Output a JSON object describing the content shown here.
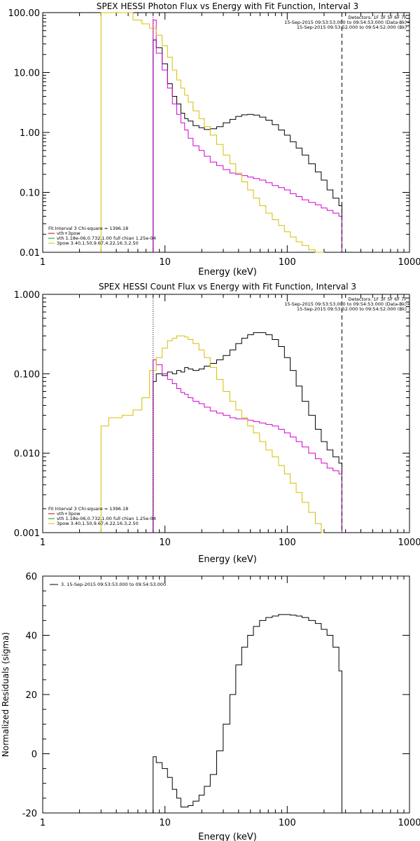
{
  "chart_data": [
    {
      "type": "line",
      "title": "SPEX HESSI Photon Flux vs Energy with Fit Function, Interval 3",
      "xlabel": "Energy (keV)",
      "ylabel": "",
      "xscale": "log",
      "yscale": "log",
      "xlim": [
        1,
        1000
      ],
      "ylim": [
        0.01,
        100
      ],
      "xticks": [
        "1",
        "10",
        "100",
        "1000"
      ],
      "yticks": [
        "0.01",
        "0.10",
        "1.00",
        "10.00",
        "100.00"
      ],
      "top_right_text": [
        "Detectors: 1F 3F 5F 6F 7F",
        "15-Sep-2015 09:53:53.000 to 09:54:53.000 (Data-Bk)",
        "15-Sep-2015 09:53:52.000 to 09:54:52.000 (Bk)"
      ],
      "legend": {
        "header": "Fit Interval 3    Chi-square = 1396.18",
        "entries": [
          {
            "label": "vth+3pow",
            "color": "#cc0000"
          },
          {
            "label": "vth 1.18e-06,0.732,1.00  full chian 1.25e-04",
            "color": "#00aa00"
          },
          {
            "label": "3pow 3.40,1.50,9.67,4.22,16.3,2.50",
            "color": "#d4c000"
          }
        ]
      },
      "vlines": [
        {
          "x": 8.0,
          "style": "dotted",
          "color": "#8800aa"
        },
        {
          "x": 280,
          "style": "dashed",
          "color": "#000000"
        }
      ],
      "series": [
        {
          "color": "#000000",
          "x": [
            8,
            9,
            10,
            11,
            12,
            13,
            14,
            15,
            16,
            18,
            20,
            22,
            25,
            28,
            32,
            36,
            40,
            45,
            50,
            56,
            63,
            71,
            80,
            90,
            100,
            112,
            125,
            140,
            160,
            180,
            200,
            224,
            250,
            280
          ],
          "y": [
            35,
            26,
            14,
            6.5,
            4.0,
            3.0,
            2.1,
            1.7,
            1.55,
            1.3,
            1.2,
            1.12,
            1.15,
            1.25,
            1.45,
            1.65,
            1.85,
            1.97,
            2.0,
            1.95,
            1.8,
            1.6,
            1.35,
            1.1,
            0.9,
            0.7,
            0.55,
            0.42,
            0.3,
            0.22,
            0.16,
            0.11,
            0.08,
            0.06
          ]
        },
        {
          "color": "#d400d4",
          "x": [
            8,
            9,
            10,
            11,
            12,
            13,
            14,
            15,
            16,
            18,
            20,
            22,
            25,
            28,
            32,
            36,
            40,
            45,
            50,
            56,
            63,
            71,
            80,
            90,
            100,
            112,
            125,
            140,
            160,
            180,
            200,
            224,
            250,
            280
          ],
          "y": [
            75,
            21,
            11,
            5.5,
            3.0,
            2.0,
            1.45,
            1.1,
            0.8,
            0.6,
            0.5,
            0.4,
            0.32,
            0.28,
            0.24,
            0.21,
            0.2,
            0.19,
            0.18,
            0.17,
            0.16,
            0.145,
            0.13,
            0.12,
            0.11,
            0.095,
            0.085,
            0.075,
            0.068,
            0.062,
            0.055,
            0.05,
            0.045,
            0.04
          ]
        },
        {
          "color": "#d4c000",
          "x": [
            3,
            4,
            5,
            6,
            7,
            8,
            9,
            10,
            11,
            12,
            13,
            14,
            15,
            16,
            18,
            20,
            22,
            25,
            28,
            32,
            36,
            40,
            45,
            50,
            56,
            63,
            71,
            80,
            90,
            100,
            112,
            125,
            140,
            160,
            180,
            200
          ],
          "y": [
            100,
            100,
            100,
            75,
            65,
            55,
            42,
            28,
            18,
            11,
            7.5,
            5.5,
            4.2,
            3.2,
            2.3,
            1.7,
            1.25,
            0.9,
            0.63,
            0.42,
            0.3,
            0.21,
            0.15,
            0.11,
            0.08,
            0.06,
            0.045,
            0.035,
            0.028,
            0.022,
            0.018,
            0.015,
            0.013,
            0.011,
            0.01,
            0.008
          ]
        }
      ]
    },
    {
      "type": "line",
      "title": "SPEX HESSI Count Flux vs Energy with Fit Function, Interval 3",
      "xlabel": "Energy (keV)",
      "ylabel": "",
      "xscale": "log",
      "yscale": "log",
      "xlim": [
        1,
        1000
      ],
      "ylim": [
        0.001,
        1
      ],
      "xticks": [
        "1",
        "10",
        "100",
        "1000"
      ],
      "yticks": [
        "0.001",
        "0.010",
        "0.100",
        "1.000"
      ],
      "top_right_text": [
        "Detectors: 1F 3F 5F 6F 7F",
        "15-Sep-2015 09:53:53.000 to 09:54:53.000 (Data-Bk)",
        "15-Sep-2015 09:53:52.000 to 09:54:52.000 (Bk)"
      ],
      "legend": {
        "header": "Fit Interval 3    Chi-square = 1396.18",
        "entries": [
          {
            "label": "vth+3pow",
            "color": "#cc0000"
          },
          {
            "label": "vth 1.18e-06,0.732,1.00  full chian 1.25e-04",
            "color": "#00aa00"
          },
          {
            "label": "3pow 3.40,1.50,9.67,4.22,16.3,2.50",
            "color": "#d4c000"
          }
        ]
      },
      "vlines": [
        {
          "x": 8.0,
          "style": "dotted",
          "color": "#000000"
        },
        {
          "x": 280,
          "style": "dashed",
          "color": "#000000"
        }
      ],
      "series": [
        {
          "color": "#000000",
          "x": [
            8,
            9,
            10,
            11,
            12,
            13,
            14,
            15,
            16,
            18,
            20,
            22,
            25,
            28,
            32,
            36,
            40,
            45,
            50,
            56,
            63,
            71,
            80,
            90,
            100,
            112,
            125,
            140,
            160,
            180,
            200,
            224,
            250,
            280
          ],
          "y": [
            0.08,
            0.1,
            0.095,
            0.105,
            0.1,
            0.11,
            0.105,
            0.12,
            0.115,
            0.11,
            0.115,
            0.125,
            0.135,
            0.15,
            0.17,
            0.2,
            0.24,
            0.28,
            0.31,
            0.33,
            0.33,
            0.31,
            0.27,
            0.22,
            0.16,
            0.11,
            0.07,
            0.045,
            0.03,
            0.02,
            0.014,
            0.011,
            0.009,
            0.0075
          ]
        },
        {
          "color": "#d400d4",
          "x": [
            8,
            9,
            10,
            11,
            12,
            13,
            14,
            15,
            16,
            18,
            20,
            22,
            25,
            28,
            32,
            36,
            40,
            45,
            50,
            56,
            63,
            71,
            80,
            90,
            100,
            112,
            125,
            140,
            160,
            180,
            200,
            224,
            250,
            280
          ],
          "y": [
            0.15,
            0.13,
            0.1,
            0.085,
            0.075,
            0.065,
            0.058,
            0.055,
            0.05,
            0.045,
            0.042,
            0.038,
            0.034,
            0.032,
            0.03,
            0.028,
            0.027,
            0.027,
            0.026,
            0.025,
            0.024,
            0.023,
            0.022,
            0.02,
            0.018,
            0.016,
            0.014,
            0.012,
            0.01,
            0.0085,
            0.0075,
            0.0065,
            0.006,
            0.0055
          ]
        },
        {
          "color": "#d4c000",
          "x": [
            3,
            4,
            5,
            6,
            7,
            8,
            9,
            10,
            11,
            12,
            13,
            14,
            15,
            16,
            18,
            20,
            22,
            25,
            28,
            32,
            36,
            40,
            45,
            50,
            56,
            63,
            71,
            80,
            90,
            100,
            112,
            125,
            140,
            160,
            180,
            200
          ],
          "y": [
            0.022,
            0.028,
            0.03,
            0.035,
            0.05,
            0.11,
            0.16,
            0.21,
            0.26,
            0.28,
            0.3,
            0.3,
            0.29,
            0.27,
            0.24,
            0.2,
            0.16,
            0.12,
            0.085,
            0.06,
            0.045,
            0.035,
            0.028,
            0.022,
            0.018,
            0.014,
            0.011,
            0.009,
            0.007,
            0.0055,
            0.0042,
            0.0032,
            0.0024,
            0.0018,
            0.0013,
            0.001
          ]
        }
      ]
    },
    {
      "type": "line",
      "title": "",
      "xlabel": "Energy (keV)",
      "ylabel": "Normalized Residuals (sigma)",
      "xscale": "log",
      "yscale": "linear",
      "xlim": [
        1,
        1000
      ],
      "ylim": [
        -20,
        60
      ],
      "xticks": [
        "1",
        "10",
        "100",
        "1000"
      ],
      "yticks": [
        "-20",
        "0",
        "20",
        "40",
        "60"
      ],
      "legend": {
        "entries": [
          {
            "label": "3. 15-Sep-2015 09:53:53.000 to 09:54:53.000",
            "color": "#000000"
          }
        ]
      },
      "series": [
        {
          "color": "#000000",
          "x": [
            8,
            9,
            10,
            11,
            12,
            13,
            14,
            15,
            16,
            18,
            20,
            22,
            25,
            28,
            32,
            36,
            40,
            45,
            50,
            56,
            63,
            71,
            80,
            90,
            100,
            112,
            125,
            140,
            160,
            180,
            200,
            224,
            250,
            280
          ],
          "y": [
            -1,
            -3,
            -5,
            -8,
            -12,
            -15,
            -18,
            -18,
            -17.5,
            -16,
            -14,
            -11,
            -7,
            1,
            10,
            20,
            30,
            36,
            40,
            43,
            45,
            46,
            46.5,
            47,
            47,
            46.8,
            46.5,
            46,
            45,
            44,
            42,
            40,
            36,
            28
          ]
        }
      ]
    }
  ]
}
